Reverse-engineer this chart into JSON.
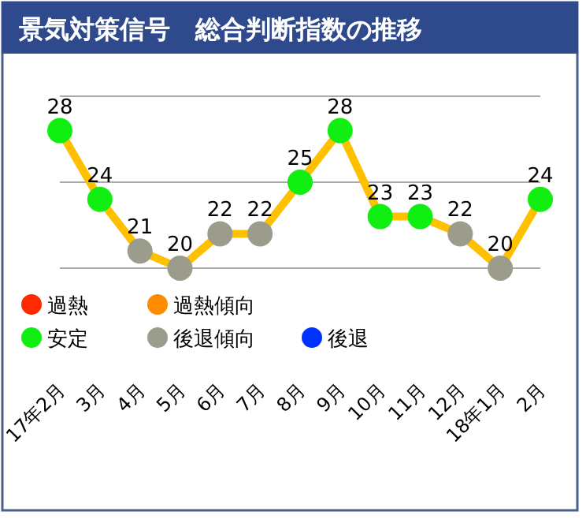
{
  "chart_data": {
    "type": "line",
    "title": "景気対策信号　総合判断指数の推移",
    "categories": [
      "17年2月",
      "3月",
      "4月",
      "5月",
      "6月",
      "7月",
      "8月",
      "9月",
      "10月",
      "11月",
      "12月",
      "18年1月",
      "2月"
    ],
    "ylim": [
      20,
      30
    ],
    "yticks": [
      {
        "value": 20,
        "label": null
      },
      {
        "value": 25,
        "label": null
      },
      {
        "value": 30,
        "label": null
      }
    ],
    "grid": "y",
    "tick_labels": "x",
    "data_labels": true,
    "legend": "bottom left",
    "marker": "circle",
    "series": [
      {
        "color": "#ffc000",
        "values": [
          28,
          24,
          21,
          20,
          22,
          22,
          25,
          28,
          23,
          23,
          22,
          20,
          24
        ],
        "colors": [
          "#11ee11",
          "#11ee11",
          "#9c9c8c",
          "#9c9c8c",
          "#9c9c8c",
          "#9c9c8c",
          "#11ee11",
          "#11ee11",
          "#11ee11",
          "#11ee11",
          "#9c9c8c",
          "#9c9c8c",
          "#11ee11"
        ]
      },
      {
        "type": "scatter",
        "name": "過熱",
        "color": "#ff2a00",
        "values": [
          null,
          null,
          null,
          null,
          null,
          null,
          null,
          null,
          null,
          null,
          null,
          null,
          null
        ]
      },
      {
        "type": "scatter",
        "name": "過熱傾向",
        "color": "#ff8c00",
        "values": [
          null,
          null,
          null,
          null,
          null,
          null,
          null,
          null,
          null,
          null,
          null,
          null,
          null
        ]
      },
      {
        "type": "scatter",
        "name": "安定",
        "color": "#11ee11",
        "values": [
          null,
          null,
          null,
          null,
          null,
          null,
          null,
          null,
          null,
          null,
          null,
          null,
          null
        ]
      },
      {
        "type": "scatter",
        "name": "後退傾向",
        "color": "#9c9c8c",
        "values": [
          null,
          null,
          null,
          null,
          null,
          null,
          null,
          null,
          null,
          null,
          null,
          null,
          null
        ]
      },
      {
        "type": "scatter",
        "name": "後退",
        "color": "#0033ff",
        "values": [
          null,
          null,
          null,
          null,
          null,
          null,
          null,
          null,
          null,
          null,
          null,
          null,
          null
        ]
      }
    ]
  }
}
